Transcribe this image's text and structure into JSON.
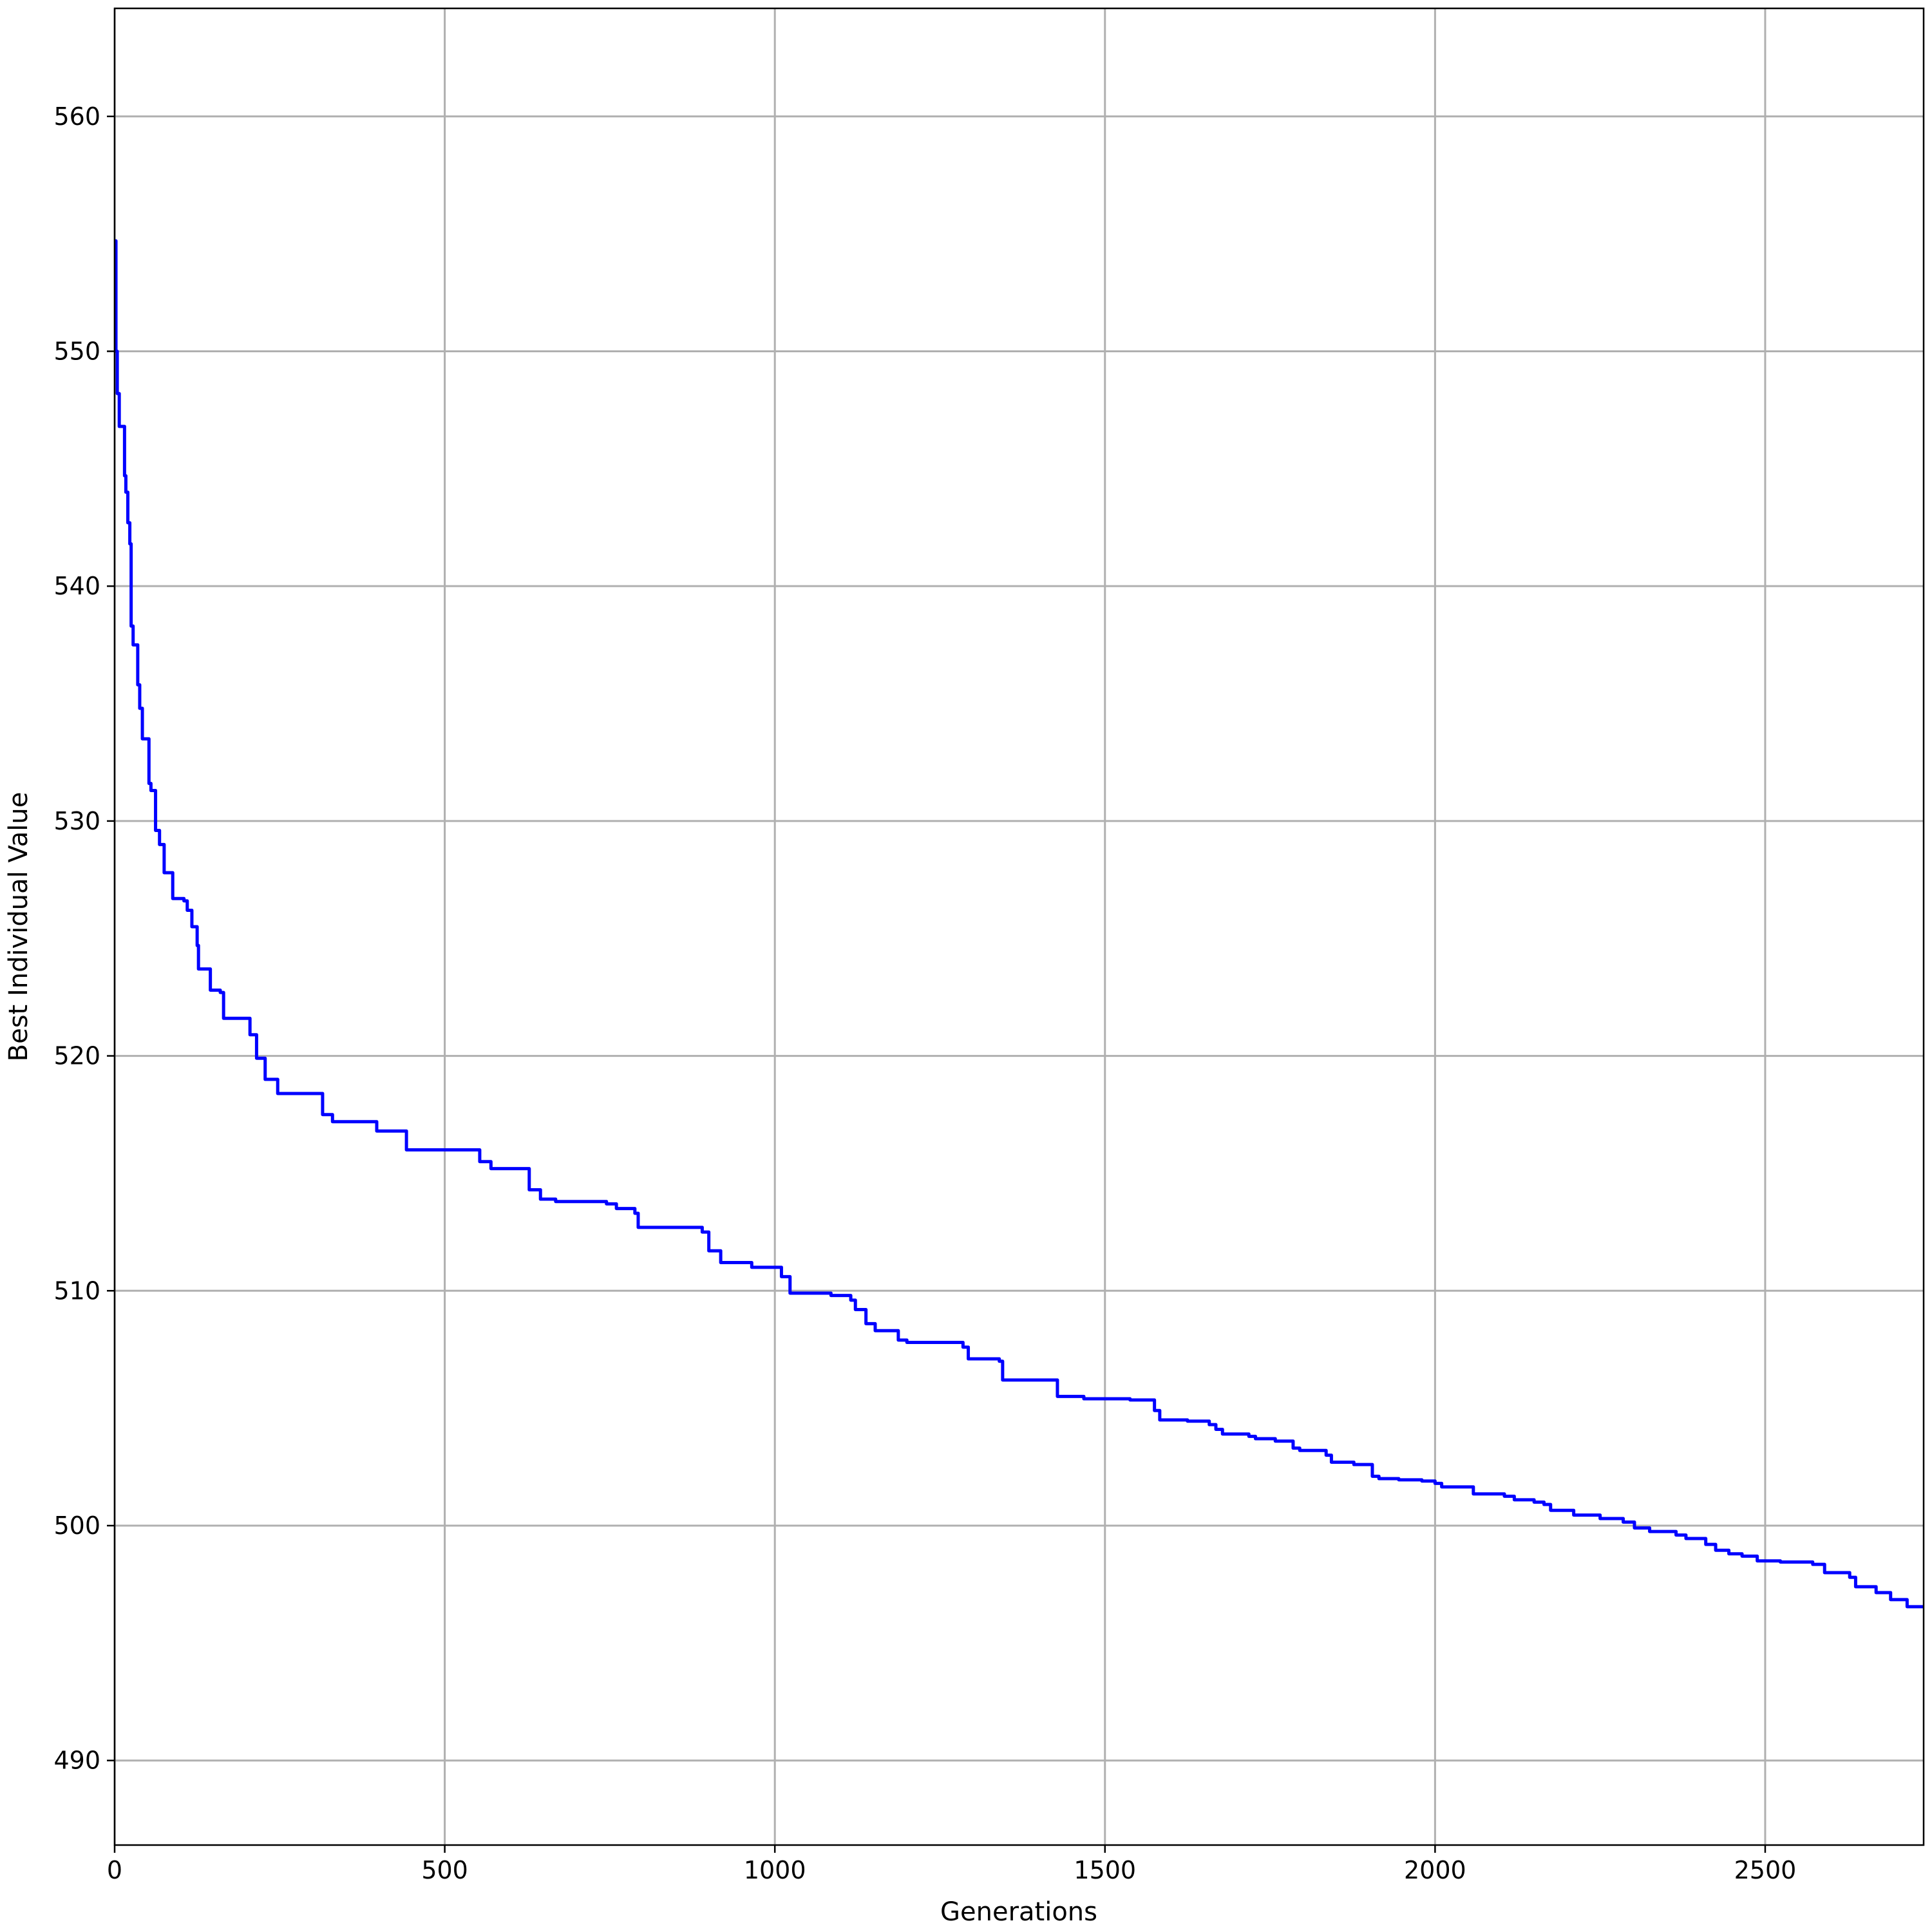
{
  "chart_data": {
    "type": "line",
    "title": "",
    "xlabel": "Generations",
    "ylabel": "Best Individual Value",
    "xlim": [
      0,
      2740
    ],
    "ylim": [
      486.4,
      564.6
    ],
    "x_ticks": [
      0,
      500,
      1000,
      1500,
      2000,
      2500
    ],
    "y_ticks": [
      490,
      500,
      510,
      520,
      530,
      540,
      550,
      560
    ],
    "grid": true,
    "legend": "none",
    "series": [
      {
        "color": "#0000ff",
        "step": true,
        "points": [
          [
            0,
            554.7
          ],
          [
            2,
            550.0
          ],
          [
            4,
            548.2
          ],
          [
            7,
            546.8
          ],
          [
            15,
            544.7
          ],
          [
            17,
            544.0
          ],
          [
            20,
            542.7
          ],
          [
            23,
            541.8
          ],
          [
            25,
            538.3
          ],
          [
            28,
            537.5
          ],
          [
            35,
            535.8
          ],
          [
            38,
            534.8
          ],
          [
            42,
            533.5
          ],
          [
            52,
            531.6
          ],
          [
            55,
            531.3
          ],
          [
            62,
            529.6
          ],
          [
            68,
            529.0
          ],
          [
            75,
            527.8
          ],
          [
            88,
            526.7
          ],
          [
            105,
            526.6
          ],
          [
            110,
            526.2
          ],
          [
            117,
            525.5
          ],
          [
            125,
            524.7
          ],
          [
            127,
            523.7
          ],
          [
            145,
            522.8
          ],
          [
            160,
            522.7
          ],
          [
            165,
            521.6
          ],
          [
            205,
            520.9
          ],
          [
            215,
            519.9
          ],
          [
            228,
            519.0
          ],
          [
            247,
            518.4
          ],
          [
            315,
            517.5
          ],
          [
            330,
            517.2
          ],
          [
            397,
            516.8
          ],
          [
            442,
            516.0
          ],
          [
            553,
            515.5
          ],
          [
            570,
            515.2
          ],
          [
            628,
            514.3
          ],
          [
            645,
            513.9
          ],
          [
            668,
            513.8
          ],
          [
            745,
            513.7
          ],
          [
            760,
            513.5
          ],
          [
            788,
            513.3
          ],
          [
            793,
            512.7
          ],
          [
            890,
            512.5
          ],
          [
            900,
            511.7
          ],
          [
            918,
            511.2
          ],
          [
            965,
            511.0
          ],
          [
            1010,
            510.6
          ],
          [
            1023,
            509.9
          ],
          [
            1085,
            509.8
          ],
          [
            1115,
            509.6
          ],
          [
            1122,
            509.2
          ],
          [
            1138,
            508.6
          ],
          [
            1152,
            508.3
          ],
          [
            1187,
            507.9
          ],
          [
            1200,
            507.8
          ],
          [
            1285,
            507.6
          ],
          [
            1293,
            507.1
          ],
          [
            1340,
            507.0
          ],
          [
            1345,
            506.2
          ],
          [
            1428,
            505.5
          ],
          [
            1468,
            505.4
          ],
          [
            1538,
            505.35
          ],
          [
            1575,
            504.9
          ],
          [
            1583,
            504.5
          ],
          [
            1625,
            504.45
          ],
          [
            1658,
            504.3
          ],
          [
            1668,
            504.1
          ],
          [
            1678,
            503.9
          ],
          [
            1718,
            503.8
          ],
          [
            1728,
            503.7
          ],
          [
            1758,
            503.6
          ],
          [
            1785,
            503.3
          ],
          [
            1795,
            503.2
          ],
          [
            1835,
            503.0
          ],
          [
            1843,
            502.7
          ],
          [
            1877,
            502.6
          ],
          [
            1905,
            502.1
          ],
          [
            1915,
            502.0
          ],
          [
            1945,
            501.95
          ],
          [
            1980,
            501.9
          ],
          [
            2000,
            501.8
          ],
          [
            2010,
            501.65
          ],
          [
            2058,
            501.35
          ],
          [
            2105,
            501.25
          ],
          [
            2120,
            501.1
          ],
          [
            2150,
            501.0
          ],
          [
            2165,
            500.9
          ],
          [
            2175,
            500.65
          ],
          [
            2210,
            500.45
          ],
          [
            2250,
            500.3
          ],
          [
            2285,
            500.15
          ],
          [
            2302,
            499.9
          ],
          [
            2325,
            499.75
          ],
          [
            2365,
            499.6
          ],
          [
            2380,
            499.45
          ],
          [
            2410,
            499.2
          ],
          [
            2425,
            498.95
          ],
          [
            2445,
            498.8
          ],
          [
            2465,
            498.7
          ],
          [
            2488,
            498.5
          ],
          [
            2523,
            498.45
          ],
          [
            2572,
            498.35
          ],
          [
            2590,
            498.0
          ],
          [
            2628,
            497.8
          ],
          [
            2637,
            497.4
          ],
          [
            2668,
            497.15
          ],
          [
            2690,
            496.85
          ],
          [
            2715,
            496.55
          ],
          [
            2748,
            496.45
          ],
          [
            2785,
            496.35
          ],
          [
            2820,
            496.25
          ],
          [
            2840,
            496.25
          ]
        ]
      }
    ]
  }
}
